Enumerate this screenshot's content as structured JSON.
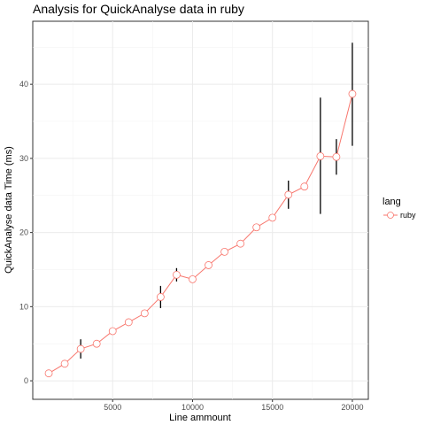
{
  "chart_data": {
    "type": "line",
    "title": "Analysis for QuickAnalyse data in ruby",
    "xlabel": "Line ammount",
    "ylabel": "QuickAnalyse data Time (ms)",
    "xlim": [
      0,
      21000
    ],
    "ylim": [
      -2.5,
      48.5
    ],
    "xticks": [
      5000,
      10000,
      15000,
      20000
    ],
    "yticks": [
      0,
      10,
      20,
      30,
      40
    ],
    "grid": true,
    "legend": {
      "title": "lang",
      "position": "right"
    },
    "series": [
      {
        "name": "ruby",
        "color": "#F8766D",
        "x": [
          1000,
          2000,
          3000,
          4000,
          5000,
          6000,
          7000,
          8000,
          9000,
          10000,
          11000,
          12000,
          13000,
          14000,
          15000,
          16000,
          17000,
          18000,
          19000,
          20000
        ],
        "y": [
          1.0,
          2.3,
          4.3,
          5.0,
          6.7,
          7.9,
          9.1,
          11.3,
          14.3,
          13.7,
          15.6,
          17.4,
          18.5,
          20.7,
          22.0,
          25.1,
          26.2,
          30.3,
          30.2,
          38.7
        ],
        "error_low": [
          null,
          null,
          3.0,
          null,
          null,
          null,
          null,
          9.8,
          13.4,
          null,
          null,
          null,
          null,
          null,
          null,
          23.2,
          null,
          22.5,
          27.8,
          31.7
        ],
        "error_high": [
          null,
          null,
          5.6,
          null,
          null,
          null,
          null,
          12.8,
          15.2,
          null,
          null,
          null,
          null,
          null,
          null,
          27.0,
          null,
          38.2,
          32.6,
          45.6
        ]
      }
    ]
  }
}
